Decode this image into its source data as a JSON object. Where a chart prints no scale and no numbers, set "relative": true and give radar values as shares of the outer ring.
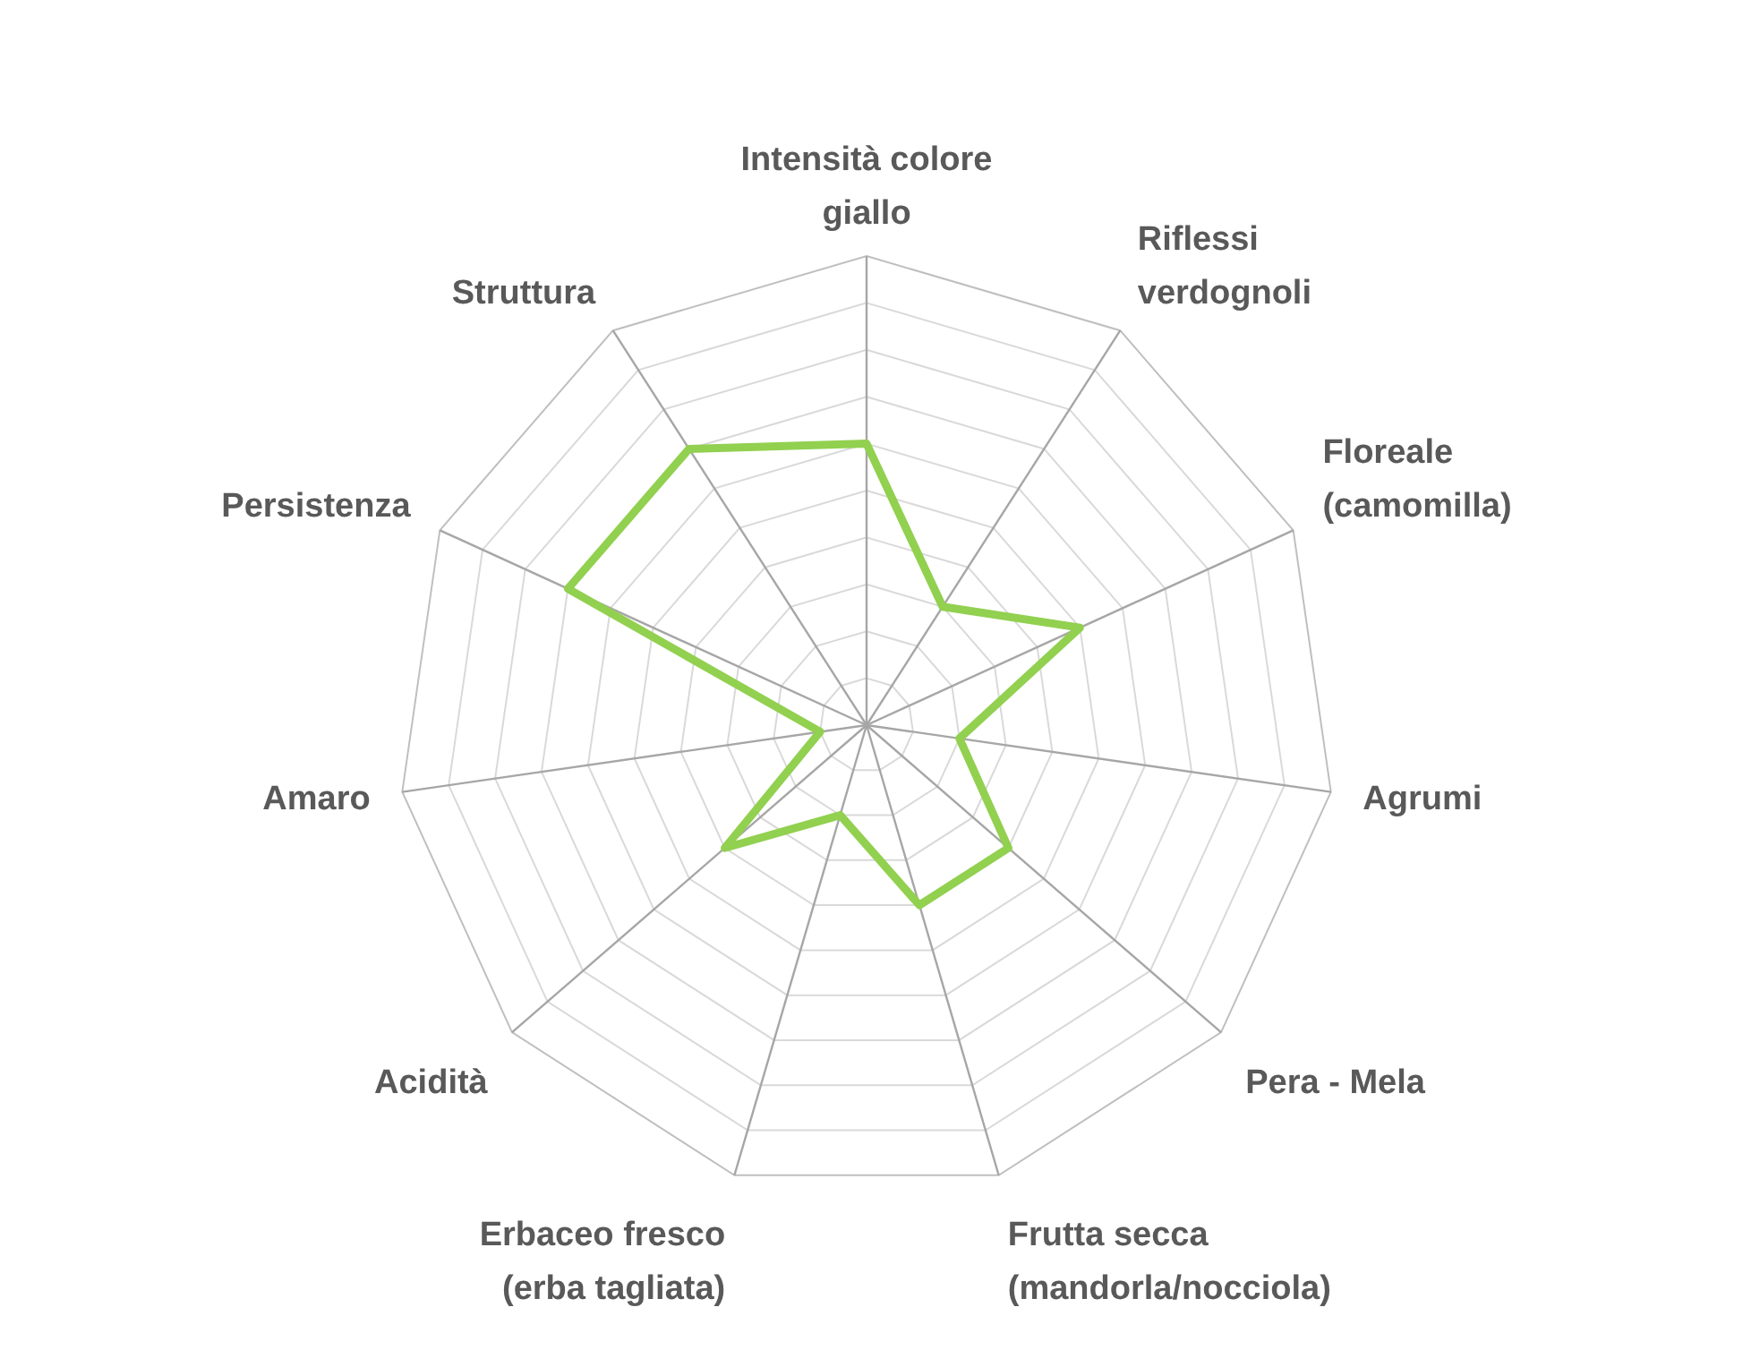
{
  "chart_data": {
    "type": "radar",
    "relative": true,
    "categories": [
      "Intensità colore giallo",
      "Riflessi verdognoli",
      "Floreale (camomilla)",
      "Agrumi",
      "Pera - Mela",
      "Frutta secca (mandorla/nocciola)",
      "Erbaceo fresco (erba tagliata)",
      "Acidità",
      "Amaro",
      "Persistenza",
      "Struttura"
    ],
    "series": [
      {
        "color": "#92d050",
        "values": [
          0.6,
          0.3,
          0.5,
          0.2,
          0.4,
          0.4,
          0.2,
          0.4,
          0.1,
          0.7,
          0.7
        ]
      }
    ],
    "grid": true,
    "marker": "none",
    "line_style": "solid"
  }
}
